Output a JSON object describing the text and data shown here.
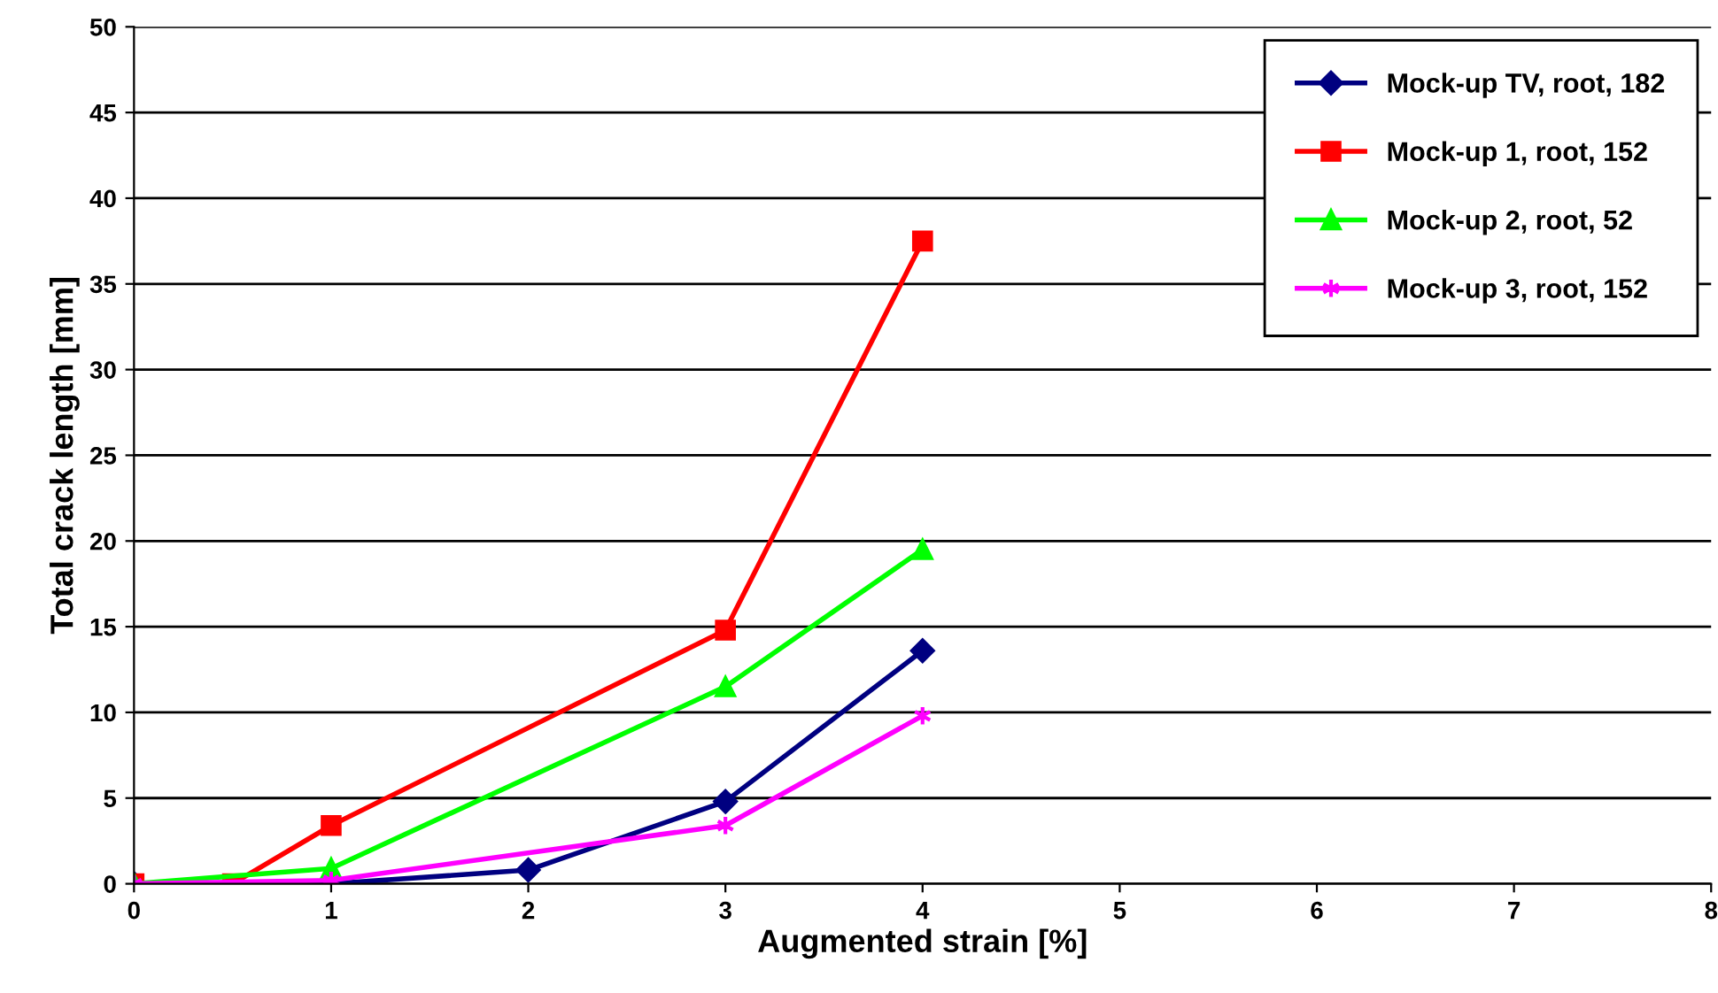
{
  "chart_data": {
    "type": "line",
    "xlabel": "Augmented strain [%]",
    "ylabel": "Total crack length [mm]",
    "xlim": [
      0,
      8
    ],
    "xticks": [
      0,
      1,
      2,
      3,
      4,
      5,
      6,
      7,
      8
    ],
    "ylim": [
      0,
      50
    ],
    "yticks": [
      0,
      5,
      10,
      15,
      20,
      25,
      30,
      35,
      40,
      45,
      50
    ],
    "grid": "y",
    "legend": "top right",
    "line_style": "solid",
    "series": [
      {
        "name": "Mock-up TV, root, 182",
        "color": "#000080",
        "marker": "diamond",
        "x": [
          0,
          1,
          2,
          3,
          4
        ],
        "values": [
          0,
          0,
          0.8,
          4.8,
          13.6
        ]
      },
      {
        "name": "Mock-up 1, root, 152",
        "color": "#ff0000",
        "marker": "square",
        "x": [
          0,
          0.5,
          1,
          3,
          4
        ],
        "values": [
          0,
          0,
          3.4,
          14.8,
          37.5
        ]
      },
      {
        "name": "Mock-up 2, root, 52",
        "color": "#00ff00",
        "marker": "triangle",
        "x": [
          0,
          1,
          3,
          4
        ],
        "values": [
          0,
          0.9,
          11.5,
          19.5
        ]
      },
      {
        "name": "Mock-up 3, root, 152",
        "color": "#ff00ff",
        "marker": "cross",
        "x": [
          0,
          1,
          3,
          4
        ],
        "values": [
          0,
          0.2,
          3.4,
          9.8
        ]
      }
    ]
  }
}
